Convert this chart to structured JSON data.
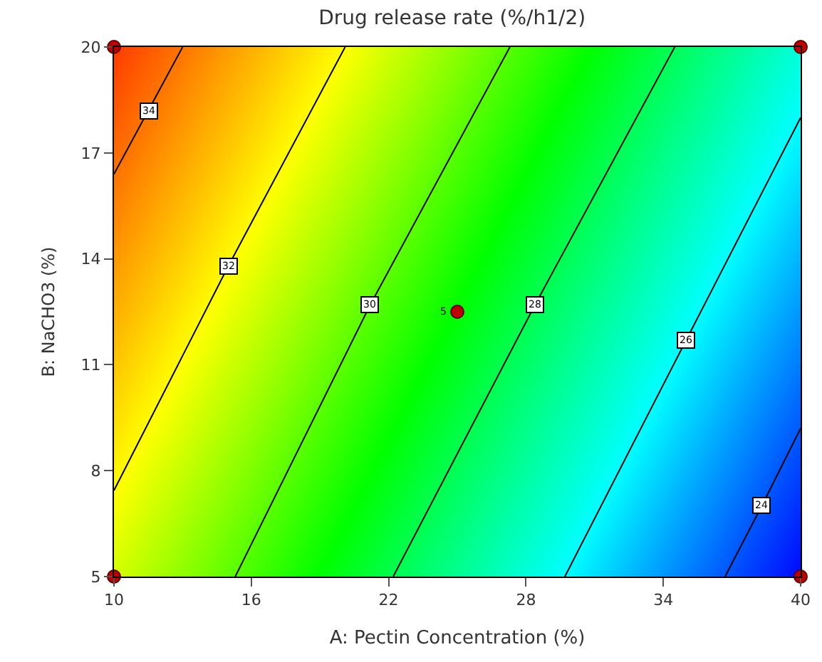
{
  "chart_data": {
    "type": "line",
    "title": "Drug release rate (%/h1/2)",
    "xlabel": "A: Pectin Concentration (%)",
    "ylabel": "B: NaCHO3 (%)",
    "xlim": [
      10,
      40
    ],
    "ylim": [
      5,
      20
    ],
    "xticks": [
      10,
      16,
      22,
      28,
      34,
      40
    ],
    "yticks": [
      5,
      8,
      11,
      14,
      17,
      20
    ],
    "grid": false,
    "annotations": [
      {
        "text": "5",
        "x": 25,
        "y": 12.5
      }
    ],
    "series": [
      {
        "name": "34",
        "color": "#000000",
        "x": [
          10,
          11.5,
          13.0
        ],
        "values": [
          16.4,
          18.2,
          20
        ]
      },
      {
        "name": "32",
        "color": "#000000",
        "x": [
          10,
          15.0,
          20.1
        ],
        "values": [
          7.44,
          13.8,
          20
        ]
      },
      {
        "name": "30",
        "color": "#000000",
        "x": [
          15.3,
          21.2,
          27.3
        ],
        "values": [
          5,
          12.7,
          20
        ]
      },
      {
        "name": "28",
        "color": "#000000",
        "x": [
          22.2,
          28.4,
          34.5
        ],
        "values": [
          5,
          12.7,
          20
        ]
      },
      {
        "name": "26",
        "color": "#000000",
        "x": [
          29.7,
          35.0,
          40
        ],
        "values": [
          5,
          11.7,
          18.0
        ]
      },
      {
        "name": "24",
        "color": "#000000",
        "x": [
          36.7,
          38.3,
          40
        ],
        "values": [
          5,
          7.0,
          9.2
        ]
      },
      {
        "type": "scatter",
        "color": "#c00000",
        "marker": "circle",
        "x": [
          10,
          40,
          10,
          40,
          25
        ],
        "values": [
          20,
          20,
          5,
          5,
          12.5
        ]
      }
    ]
  }
}
